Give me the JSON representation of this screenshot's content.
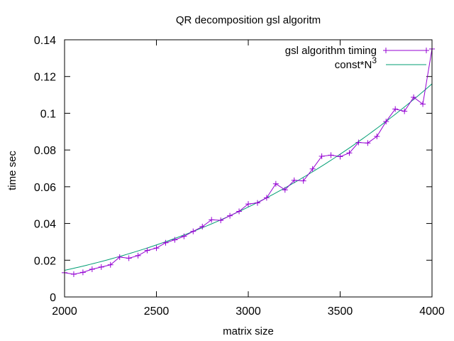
{
  "chart_data": {
    "type": "line",
    "title": "QR decomposition gsl algoritm",
    "xlabel": "matrix size",
    "ylabel": "time sec",
    "xlim": [
      2000,
      4000
    ],
    "ylim": [
      0,
      0.14
    ],
    "xticks": [
      2000,
      2500,
      3000,
      3500,
      4000
    ],
    "yticks": [
      0,
      0.02,
      0.04,
      0.06,
      0.08,
      0.1,
      0.12,
      0.14
    ],
    "xtick_labels": [
      "2000",
      "2500",
      "3000",
      "3500",
      "4000"
    ],
    "ytick_labels": [
      "0",
      "0.02",
      "0.04",
      "0.06",
      "0.08",
      "0.1",
      "0.12",
      "0.14"
    ],
    "grid": false,
    "legend_position": "top-right",
    "series": [
      {
        "name": "gsl algorithm timing",
        "color": "#9400d3",
        "marker": "plus",
        "x": [
          2000,
          2050,
          2100,
          2150,
          2200,
          2250,
          2300,
          2350,
          2400,
          2450,
          2500,
          2550,
          2600,
          2650,
          2700,
          2750,
          2800,
          2850,
          2900,
          2950,
          3000,
          3050,
          3100,
          3150,
          3200,
          3250,
          3300,
          3350,
          3400,
          3450,
          3500,
          3550,
          3600,
          3650,
          3700,
          3750,
          3800,
          3850,
          3900,
          3950,
          4000
        ],
        "y": [
          0.0132,
          0.0124,
          0.0134,
          0.0151,
          0.0163,
          0.0175,
          0.0217,
          0.0211,
          0.0225,
          0.0253,
          0.0266,
          0.0295,
          0.0311,
          0.033,
          0.0357,
          0.0383,
          0.042,
          0.0417,
          0.0442,
          0.0466,
          0.0506,
          0.0512,
          0.054,
          0.0616,
          0.0583,
          0.0635,
          0.0632,
          0.0697,
          0.0766,
          0.0772,
          0.0764,
          0.0784,
          0.0841,
          0.0838,
          0.0874,
          0.0955,
          0.1023,
          0.1011,
          0.1087,
          0.105,
          0.135
        ]
      },
      {
        "name": "const*N^3",
        "legend_label": "const*N",
        "legend_superscript": "3",
        "color": "#009e73",
        "marker": "none",
        "formula_const": 1.8125e-12,
        "x_range": [
          2000,
          4000
        ]
      }
    ]
  }
}
